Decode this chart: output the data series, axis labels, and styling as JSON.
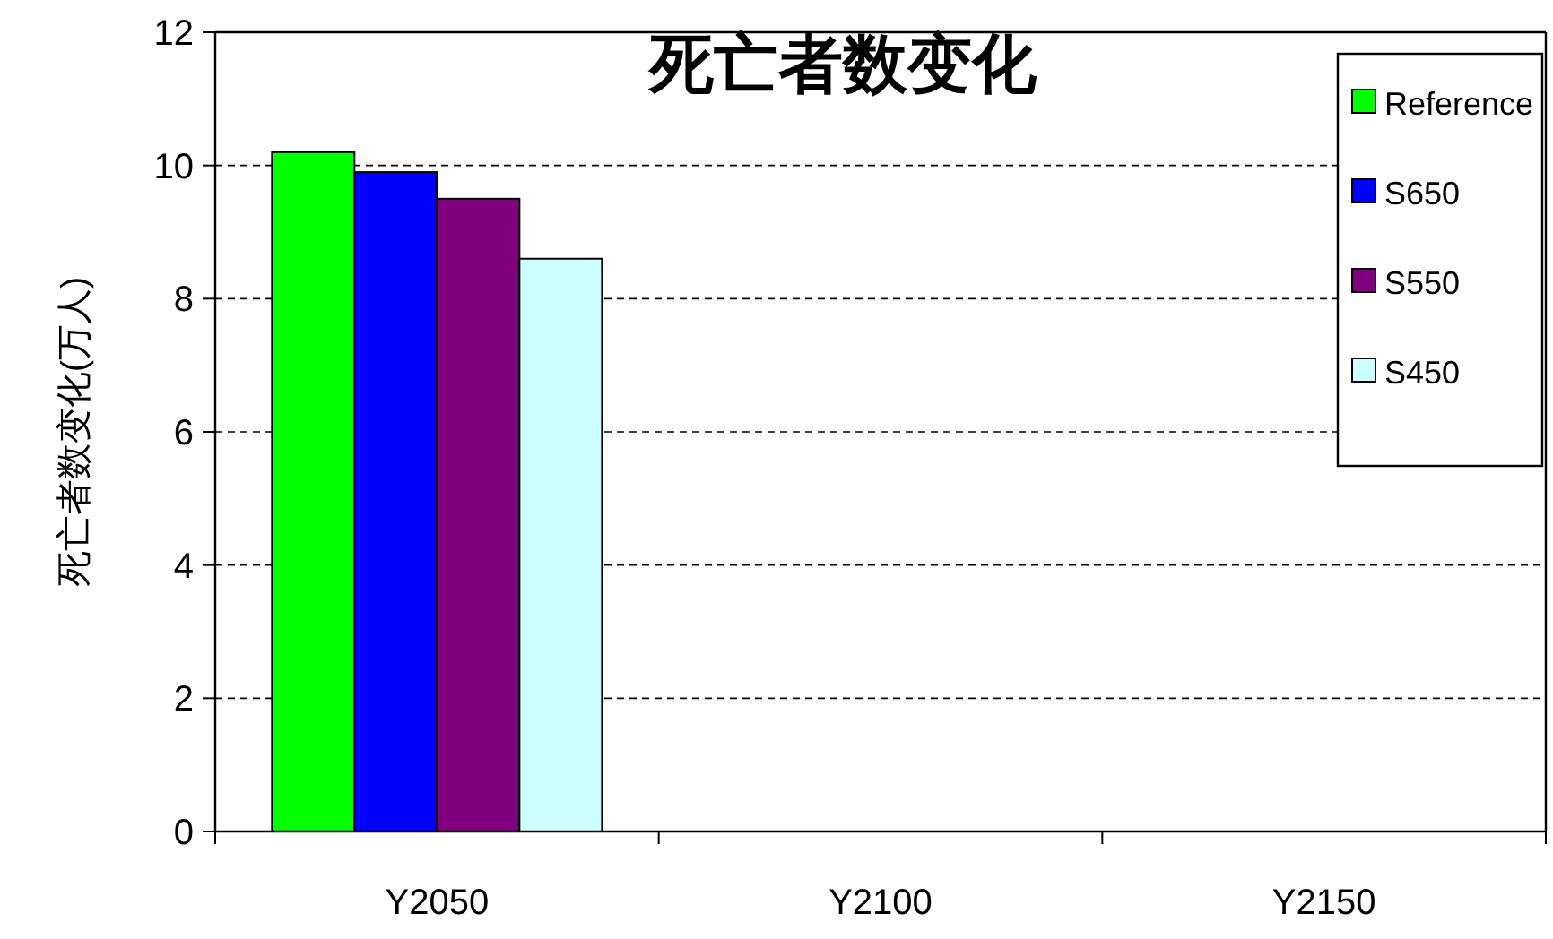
{
  "chart_data": {
    "type": "bar",
    "title": "死亡者数变化",
    "ylabel": "死亡者数变化(万人)",
    "categories": [
      "Y2050",
      "Y2100",
      "Y2150"
    ],
    "series": [
      {
        "name": "Reference",
        "color": "#00ff00",
        "values": [
          10.2,
          null,
          null
        ]
      },
      {
        "name": "S650",
        "color": "#0000ff",
        "values": [
          9.9,
          null,
          null
        ]
      },
      {
        "name": "S550",
        "color": "#800080",
        "values": [
          9.5,
          null,
          null
        ]
      },
      {
        "name": "S450",
        "color": "#ccffff",
        "values": [
          8.6,
          null,
          null
        ]
      }
    ],
    "ylim": [
      0,
      12
    ],
    "yticks": [
      0,
      2,
      4,
      6,
      8,
      10,
      12
    ],
    "grid": "y",
    "legend": "top right"
  }
}
